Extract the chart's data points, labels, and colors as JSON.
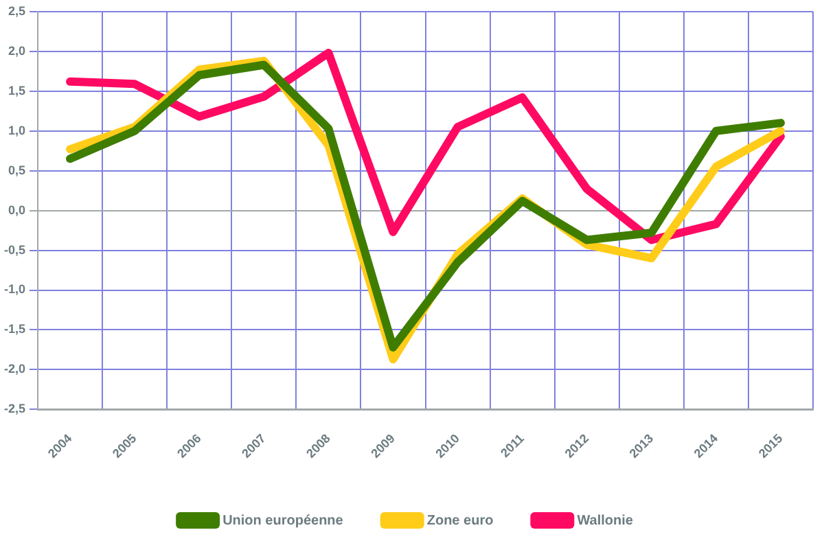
{
  "chart_data": {
    "type": "line",
    "categories": [
      "2004",
      "2005",
      "2006",
      "2007",
      "2008",
      "2009",
      "2010",
      "2011",
      "2012",
      "2013",
      "2014",
      "2015"
    ],
    "series": [
      {
        "name": "Union européenne",
        "color": "#3f7d00",
        "values": [
          0.65,
          1.0,
          1.7,
          1.83,
          1.03,
          -1.72,
          -0.65,
          0.12,
          -0.37,
          -0.28,
          1.0,
          1.1
        ]
      },
      {
        "name": "Zone euro",
        "color": "#ffcc1a",
        "values": [
          0.77,
          1.05,
          1.77,
          1.88,
          0.82,
          -1.87,
          -0.55,
          0.15,
          -0.43,
          -0.6,
          0.55,
          1.0
        ]
      },
      {
        "name": "Wallonie",
        "color": "#ff0a62",
        "values": [
          1.62,
          1.59,
          1.18,
          1.43,
          1.98,
          -0.27,
          1.05,
          1.42,
          0.27,
          -0.37,
          -0.17,
          0.93
        ]
      }
    ],
    "ylim": [
      -2.5,
      2.5
    ],
    "yticks": [
      {
        "value": -2.5,
        "label": "-2,5"
      },
      {
        "value": -2,
        "label": "-2,0"
      },
      {
        "value": -1.5,
        "label": "-1,5"
      },
      {
        "value": -1,
        "label": "-1,0"
      },
      {
        "value": -0.5,
        "label": "-0,5"
      },
      {
        "value": 0,
        "label": "0,0"
      },
      {
        "value": 0.5,
        "label": "0,5"
      },
      {
        "value": 1,
        "label": "1,0"
      },
      {
        "value": 1.5,
        "label": "1,5"
      },
      {
        "value": 2,
        "label": "2,0"
      },
      {
        "value": 2.5,
        "label": "2,5"
      }
    ],
    "grid": true,
    "legend": "bottom",
    "marker": "none",
    "line_style": "solid"
  }
}
